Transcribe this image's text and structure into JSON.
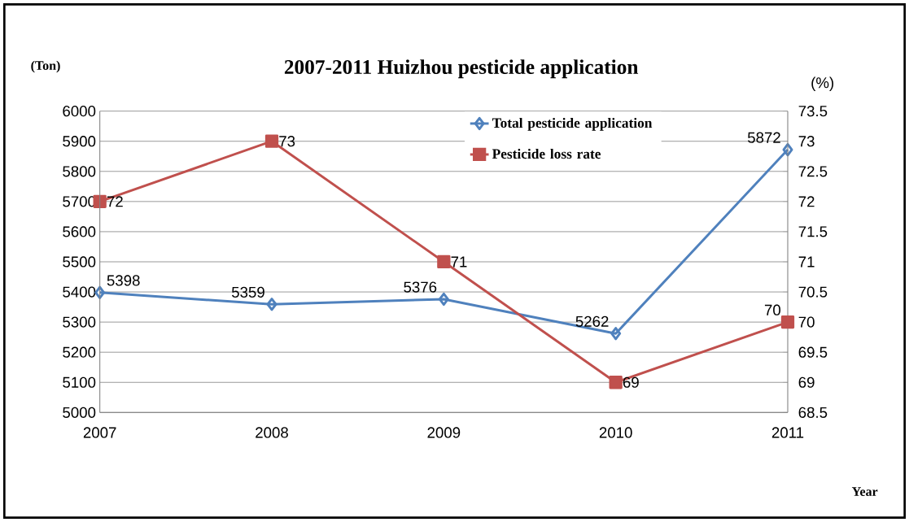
{
  "chart_data": {
    "type": "line",
    "title": "2007-2011 Huizhou pesticide application",
    "xlabel": "Year",
    "ylabel": "(Ton)",
    "y2label": "(%)",
    "categories": [
      "2007",
      "2008",
      "2009",
      "2010",
      "2011"
    ],
    "series": [
      {
        "name": "Total pesticide application",
        "color": "#4f81bd",
        "marker": "diamond",
        "values": [
          5398,
          5359,
          5376,
          5262,
          5872
        ]
      },
      {
        "name": "Pesticide  loss rate",
        "color": "#c0504d",
        "marker": "square",
        "axis": "y2",
        "values": [
          72,
          73,
          71,
          69,
          70
        ]
      }
    ],
    "ylim": [
      5000,
      6000
    ],
    "yticks": [
      5000,
      5100,
      5200,
      5300,
      5400,
      5500,
      5600,
      5700,
      5800,
      5900,
      6000
    ],
    "y2lim": [
      68.5,
      73.5
    ],
    "y2ticks": [
      68.5,
      69,
      69.5,
      70,
      70.5,
      71,
      71.5,
      72,
      72.5,
      73,
      73.5
    ],
    "grid": "y",
    "legend": "top right",
    "data_labels": true,
    "line_style": "solid"
  }
}
